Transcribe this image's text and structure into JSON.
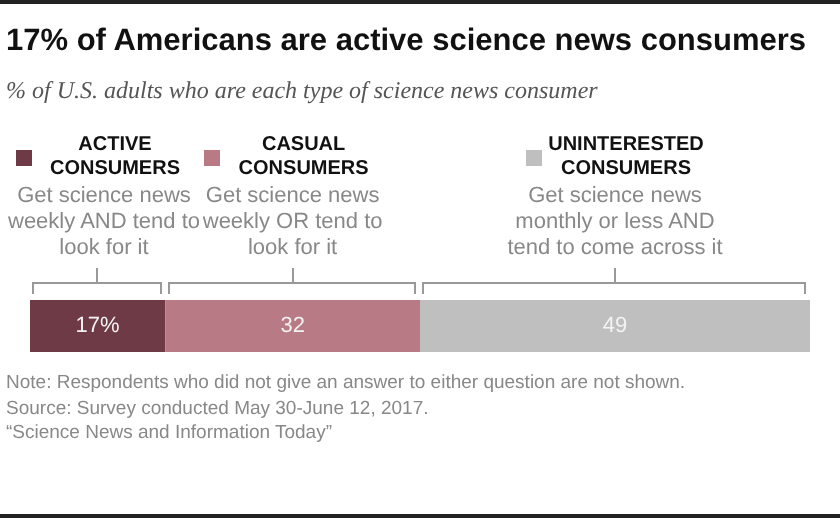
{
  "chart_data": {
    "type": "bar",
    "orientation": "horizontal",
    "stacked": true,
    "title": "17% of Americans are active science news consumers",
    "subtitle": "% of U.S. adults who are each type of science news consumer",
    "categories": [
      null
    ],
    "series": [
      {
        "name": "ACTIVE CONSUMERS",
        "color": "#6e3a46",
        "values": [
          17
        ],
        "value_labels": [
          "17%"
        ]
      },
      {
        "name": "CASUAL CONSUMERS",
        "color": "#b87a84",
        "values": [
          32
        ],
        "value_labels": [
          "32"
        ]
      },
      {
        "name": "UNINTERESTED CONSUMERS",
        "color": "#bfbfbf",
        "values": [
          49
        ],
        "value_labels": [
          "49"
        ]
      }
    ],
    "annotations": [
      "Get science news weekly AND tend to look for it",
      "Get science news weekly OR tend to look for it",
      "Get science news monthly or less AND tend to come across it",
      "Note: Respondents who did not give an answer to either question are not shown.",
      "Source: Survey conducted May 30-June 12, 2017.",
      "“Science News and Information Today”"
    ],
    "legend": "top"
  }
}
